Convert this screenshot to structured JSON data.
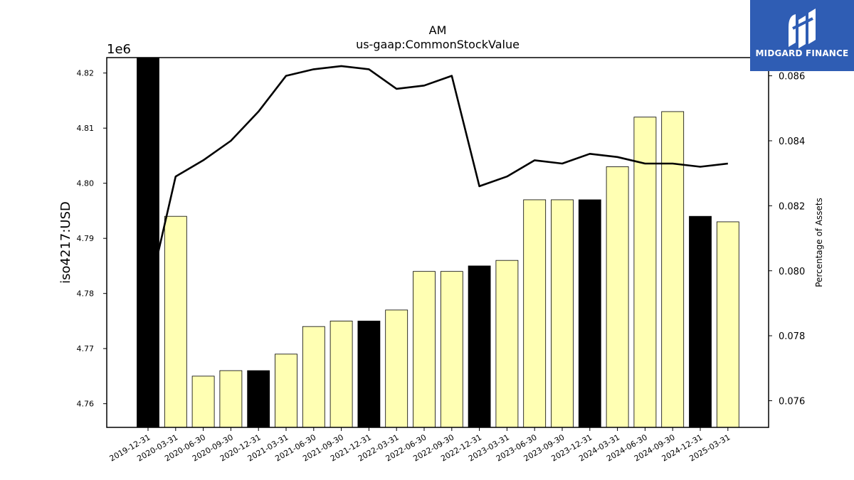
{
  "chart_data": {
    "type": "bar",
    "title": "AM",
    "subtitle": "us-gaap:CommonStockValue",
    "ylabel": "iso4217:USD",
    "y_offset_label": "1e6",
    "y2label": "Percentage of Assets",
    "ylim": [
      4.7557,
      4.8228
    ],
    "y2lim": [
      0.07518,
      0.08656
    ],
    "yticks": [
      "4.76",
      "4.77",
      "4.78",
      "4.79",
      "4.80",
      "4.81",
      "4.82"
    ],
    "y2ticks": [
      "0.076",
      "0.078",
      "0.080",
      "0.082",
      "0.084",
      "0.086"
    ],
    "categories": [
      "2019-12-31",
      "2020-03-31",
      "2020-06-30",
      "2020-09-30",
      "2020-12-31",
      "2021-03-31",
      "2021-06-30",
      "2021-09-30",
      "2021-12-31",
      "2022-03-31",
      "2022-06-30",
      "2022-09-30",
      "2022-12-31",
      "2023-03-31",
      "2023-06-30",
      "2023-09-30",
      "2023-12-31",
      "2024-03-31",
      "2024-06-30",
      "2024-09-30",
      "2024-12-31",
      "2025-03-31"
    ],
    "series": [
      {
        "type": "bar",
        "axis": "left",
        "values": [
          4.823,
          4.794,
          4.765,
          4.766,
          4.766,
          4.769,
          4.774,
          4.775,
          4.775,
          4.777,
          4.784,
          4.784,
          4.785,
          4.786,
          4.797,
          4.797,
          4.797,
          4.803,
          4.812,
          4.813,
          4.794,
          4.793
        ],
        "highlight": [
          true,
          false,
          false,
          false,
          true,
          false,
          false,
          false,
          true,
          false,
          false,
          false,
          true,
          false,
          false,
          false,
          true,
          false,
          false,
          false,
          true,
          false
        ]
      },
      {
        "type": "line",
        "axis": "right",
        "values": [
          0.0792,
          0.0829,
          0.0834,
          0.084,
          0.0849,
          0.086,
          0.0862,
          0.0863,
          0.0862,
          0.0856,
          0.0857,
          0.086,
          0.0826,
          0.0829,
          0.0834,
          0.0833,
          0.0836,
          0.0835,
          0.0833,
          0.0833,
          0.0832,
          0.0833
        ]
      }
    ],
    "colors": {
      "highlight": "#000000",
      "normal": "#ffffb3",
      "line": "#000000"
    },
    "grid": false
  },
  "logo": {
    "text": "MIDGARD FINANCE",
    "icon": "midgard-logo-icon"
  }
}
